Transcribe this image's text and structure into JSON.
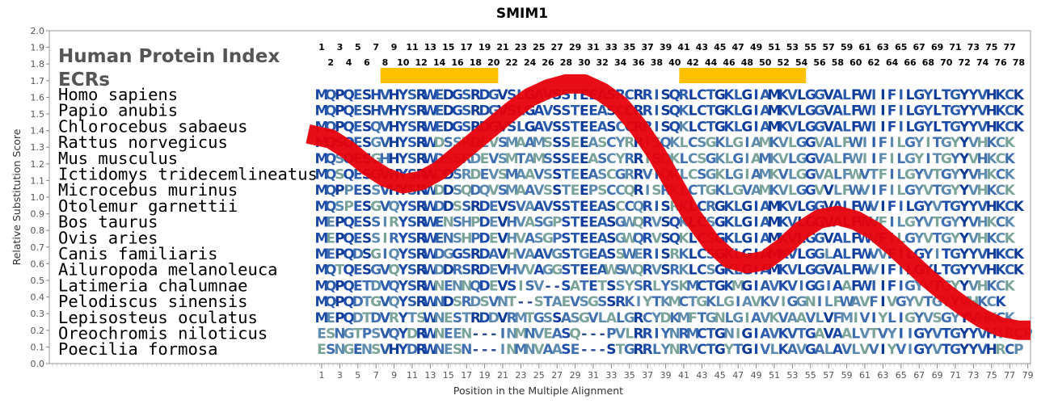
{
  "chart_data": {
    "type": "line",
    "title": "SMIM1",
    "xlabel": "Position in the Multiple Alignment",
    "ylabel": "Relative Substitution Score",
    "ylim": [
      0.0,
      2.0
    ],
    "yticks": [
      "0.0",
      "0.1",
      "0.2",
      "0.3",
      "0.4",
      "0.5",
      "0.6",
      "0.7",
      "0.8",
      "0.9",
      "1.0",
      "1.1",
      "1.2",
      "1.3",
      "1.4",
      "1.5",
      "1.6",
      "1.7",
      "1.8",
      "1.9",
      "2.0"
    ],
    "xlim": [
      1,
      79
    ],
    "xticks": [
      1,
      3,
      5,
      7,
      9,
      11,
      13,
      15,
      17,
      19,
      21,
      23,
      25,
      27,
      29,
      31,
      33,
      35,
      37,
      39,
      41,
      43,
      45,
      47,
      49,
      51,
      53,
      55,
      57,
      59,
      61,
      63,
      65,
      67,
      69,
      71,
      73,
      75,
      77,
      79
    ],
    "top_ticks_odd": [
      1,
      3,
      5,
      7,
      9,
      11,
      13,
      15,
      17,
      19,
      21,
      23,
      25,
      27,
      29,
      31,
      33,
      35,
      37,
      39,
      41,
      43,
      45,
      47,
      49,
      51,
      53,
      55,
      57,
      59,
      61,
      63,
      65,
      67,
      69,
      71,
      73,
      75,
      77
    ],
    "top_ticks_even": [
      2,
      4,
      6,
      8,
      10,
      12,
      14,
      16,
      18,
      20,
      22,
      24,
      26,
      28,
      30,
      32,
      34,
      36,
      38,
      40,
      42,
      44,
      46,
      48,
      50,
      52,
      54,
      56,
      58,
      60,
      62,
      64,
      66,
      68,
      70,
      72,
      74,
      76,
      78
    ],
    "ecr_regions": [
      [
        8,
        20
      ],
      [
        41,
        54
      ]
    ],
    "labels": {
      "line1": "Human Protein Index",
      "line2": "ECRs"
    },
    "series": [
      {
        "color": "#e8000b",
        "x": [
          0,
          2,
          4,
          6,
          8,
          10,
          12,
          14,
          16,
          18,
          20,
          22,
          24,
          26,
          28,
          30,
          32,
          34,
          36,
          38,
          40,
          42,
          44,
          46,
          48,
          50,
          52,
          54,
          56,
          58,
          60,
          62,
          64,
          66,
          68,
          70,
          72,
          74,
          76,
          78,
          79
        ],
        "y": [
          1.38,
          1.35,
          1.28,
          1.19,
          1.12,
          1.08,
          1.1,
          1.16,
          1.25,
          1.34,
          1.43,
          1.52,
          1.6,
          1.65,
          1.68,
          1.68,
          1.63,
          1.55,
          1.42,
          1.26,
          1.07,
          0.88,
          0.73,
          0.63,
          0.6,
          0.62,
          0.7,
          0.8,
          0.87,
          0.89,
          0.86,
          0.8,
          0.71,
          0.61,
          0.51,
          0.42,
          0.34,
          0.27,
          0.22,
          0.2,
          0.2
        ]
      }
    ],
    "alignment": [
      {
        "species": "Homo sapiens",
        "seq": "MQPQESHVHYSRWEDGSRDGVSLGAVSSTEEASRCRRISQRLCTGKLGIAMKVLGGVALFWIIFILGYLTGYYVHKCK"
      },
      {
        "species": "Papio anubis",
        "seq": "MQPQESHVHYSRWEDGSRDGVSLGAVSSTEEASCCRRISQKLCTGKLGIAMKVLGGVALFWIIFILGYLTGYYVHKCK"
      },
      {
        "species": "Chlorocebus sabaeus",
        "seq": "MQPQESQVHYSRWEDGSRDGVSLGAVSSTEEASCCRRISQKLCTGKLGIAMKVLGGVALFWIIFILGYLTGYYVHKCK"
      },
      {
        "species": "Rattus norvegicus",
        "seq": "MQSQESGVHYSRWDSSRDEVSMAAMSSSEEASCYRRISQKLCSGKLGIAMKVLGGVALFWIIFILGYITGYYVHKCK"
      },
      {
        "species": "Mus musculus",
        "seq": "MQSQESGHHYSRWDSSRDEVSMTAMSSSEEASCYRRISQKLCSGKLGIAMKVLGGVALFWIIFILGYITGYYVHKCK"
      },
      {
        "species": "Ictidomys tridecemlineatus",
        "seq": "MQSQESGVHYSRWDDSRDEVSMAAVSSTEEASCGRRVIQKLCSGKLGIAMKVLGGVALFWVTFILGYVTGYYVHKCK"
      },
      {
        "species": "Microcebus murinus",
        "seq": "MQPPESSVHYSRWDDSQDQVSMAAVSSTEEPSCCQRISRKLCTGKLGVAMKVLGGVVLFWVIFILGYVTGYYVHKCK"
      },
      {
        "species": "Otolemur garnettii",
        "seq": "MQSPESGVQYSRWDDSSRDEVSVAAVSSTEEASCCQRISRKLCRGKLGIAMKVLGGVALFWVIFILGYVTGYYVHKCK"
      },
      {
        "species": "Bos taurus",
        "seq": "MEPQESSIRYSRWENSHPDEVHVASGPSTEEASGWQRVSQKLCSGKLGIAMKVLGGVALFWVFILGYVTGYYVHKCK"
      },
      {
        "species": "Ovis aries",
        "seq": "MEPQESSIRYSRWENSHPDEVHVASGPSTEEASGWQRVSQKLCSGKLGIAMKVLGGVALFWVFILGYVTGYYVHKCK"
      },
      {
        "species": "Canis familiaris",
        "seq": "MEPQDSGIQYSRWDGGSRDAVHVAAVGSTGEASSWERISRKLCSGKLGIAMKVLGGLALFWVVFILGYITGYYVHKCK"
      },
      {
        "species": "Ailuropoda melanoleuca",
        "seq": "MQTQESGVQYSRWDDRSRDEVHVVAGGSTEEAWSWQRVSRKLCSGKLGIAMKVLGGVALFWVIFILGYLTGYYVHKCK"
      },
      {
        "species": "Latimeria chalumnae",
        "seq": "MQPQETDVQYSRWNENNQDEVSISV--SATETSSYSRLYSKMCTGKMGIAVKVIGGIAAFWIIFIGYVTGYYVHKCK"
      },
      {
        "species": "Pelodiscus sinensis",
        "seq": "MQPQDTGVQYSRWNDSRDSVNT--STAEVSGSSRKIYTKMCTGKLGIAVKVIGGNILFWAVFIVGYVTGYYVHKCK"
      },
      {
        "species": "Lepisosteus oculatus",
        "seq": "MEPQDTDVRYTSWNESTRDDVRMTGSSASGVLALGRCYDKMFTGNLGIAVKVAAVLVFMIVIYLIGYVSGYYVHKCK"
      },
      {
        "species": "Oreochromis niloticus",
        "seq": "ESNGTPSVQYDRWNEEN---INMNVEASQ---PVLRRIYNRMCTGNIGIAVKVTGAVAALVTVYIIGYVTGYYVHIRCP"
      },
      {
        "species": "Poecilia formosa",
        "seq": "ESNGENSVHYDRWNESN---INMNVAASE---STGRRLYNRVCTGYTGIVLKAVGALAVLVVIYVIGYVTGYYVHRCP"
      }
    ]
  }
}
